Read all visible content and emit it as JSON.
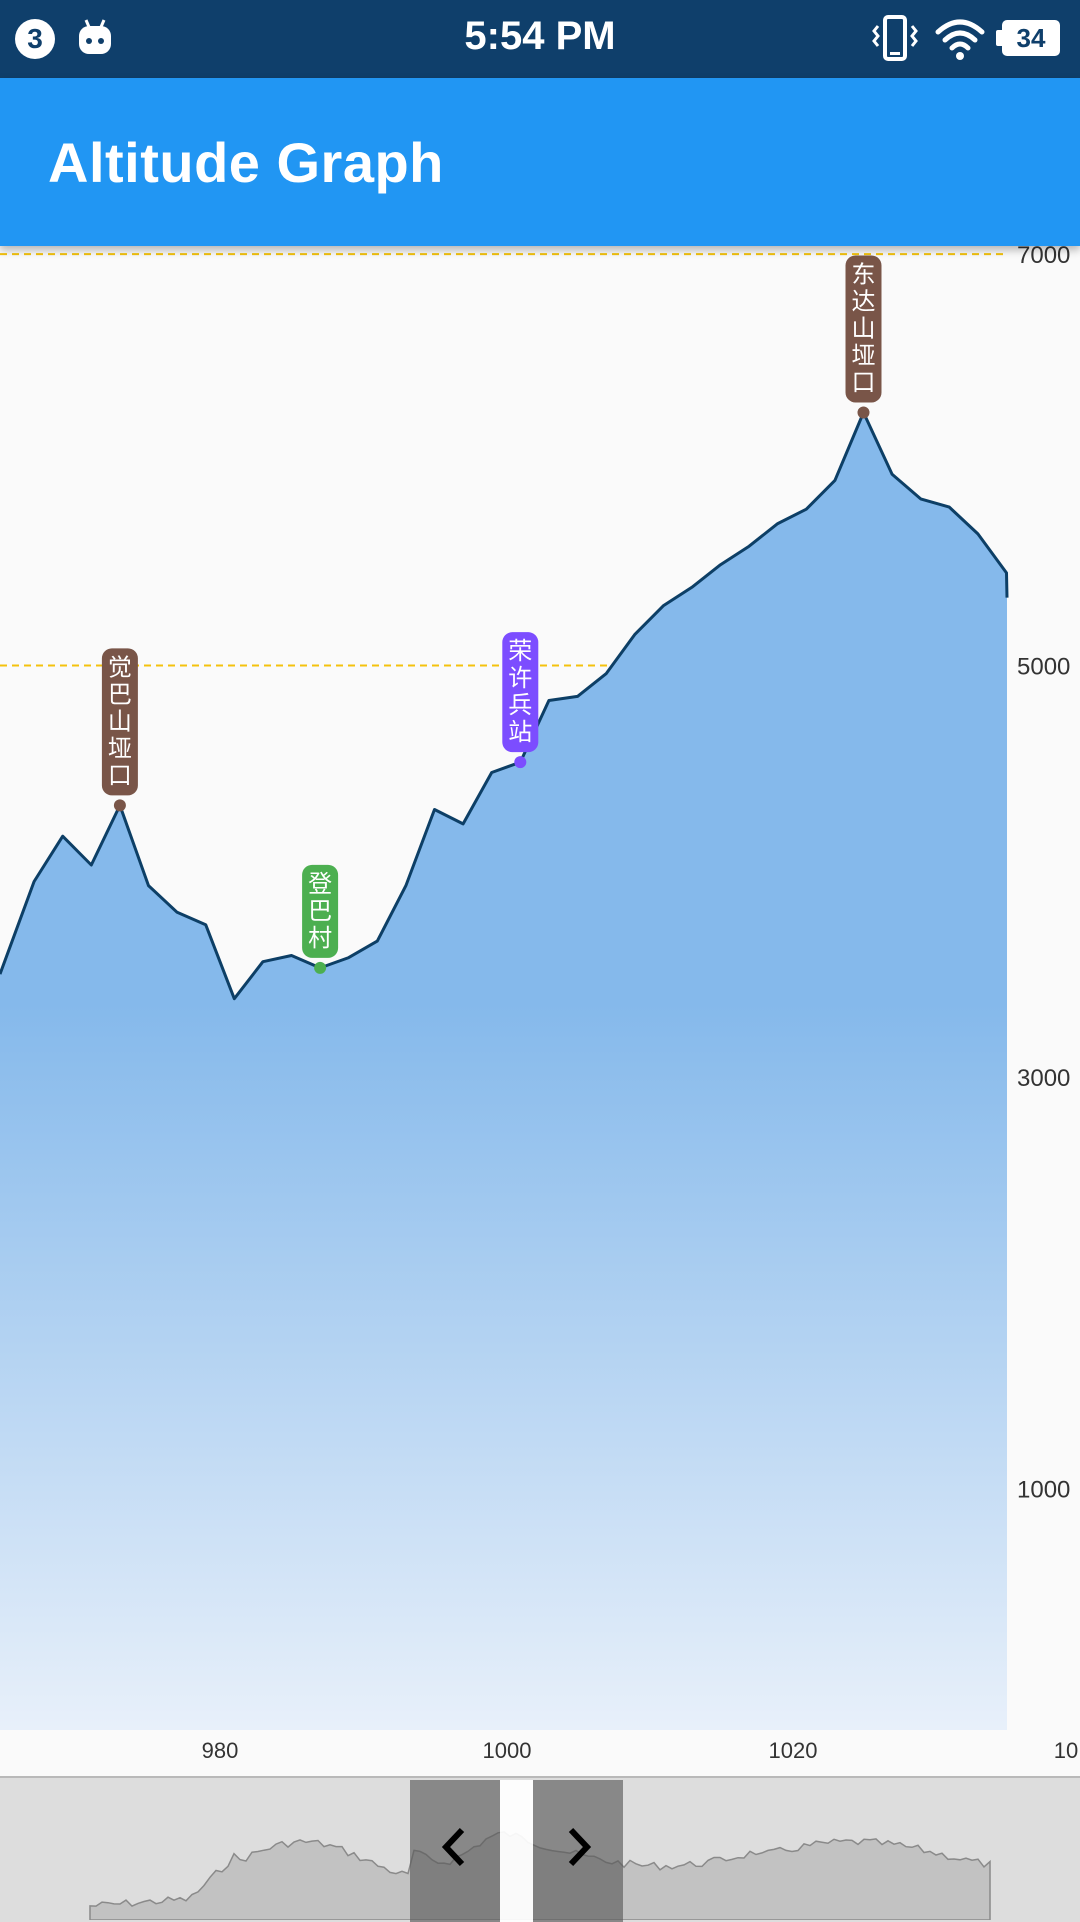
{
  "status_bar": {
    "notification_count": "3",
    "time": "5:54 PM",
    "battery": "34"
  },
  "app_bar": {
    "title": "Altitude Graph"
  },
  "chart_data": {
    "type": "area",
    "x": [
      965,
      967,
      969,
      971,
      973,
      975,
      977,
      979,
      981,
      983,
      985,
      987,
      989,
      991,
      993,
      995,
      997,
      999,
      1001,
      1003,
      1005,
      1007,
      1009,
      1011,
      1013,
      1015,
      1017,
      1019,
      1021,
      1023,
      1025,
      1027,
      1029,
      1031,
      1033,
      1035,
      1036
    ],
    "y": [
      3500,
      3950,
      4170,
      4030,
      4320,
      3930,
      3800,
      3740,
      3380,
      3560,
      3590,
      3530,
      3580,
      3660,
      3930,
      4300,
      4230,
      4480,
      4530,
      4830,
      4850,
      4960,
      5150,
      5290,
      5380,
      5490,
      5580,
      5690,
      5760,
      5900,
      6230,
      5930,
      5810,
      5770,
      5640,
      5450,
      5330
    ],
    "ylim": [
      0,
      7000
    ],
    "y_ticks": [
      "7000",
      "5000",
      "3000",
      "1000"
    ],
    "x_ticks": [
      "980",
      "1000",
      "1020",
      "10"
    ],
    "grid": "dashed horizontal",
    "colors": {
      "line": "#0d3f66",
      "fill_top": "#85b9eb",
      "fill_bottom": "#e8f0fa",
      "gridline": "#f4c20d"
    },
    "markers": [
      {
        "label": "觉巴山垭口",
        "x": 973,
        "y": 4320,
        "color": "#795548"
      },
      {
        "label": "登巴村",
        "x": 987,
        "y": 3530,
        "color": "#4caf50"
      },
      {
        "label": "荣许兵站",
        "x": 1001,
        "y": 4530,
        "color": "#7c4dff"
      },
      {
        "label": "东达山垭口",
        "x": 1025,
        "y": 6230,
        "color": "#795548"
      }
    ]
  }
}
